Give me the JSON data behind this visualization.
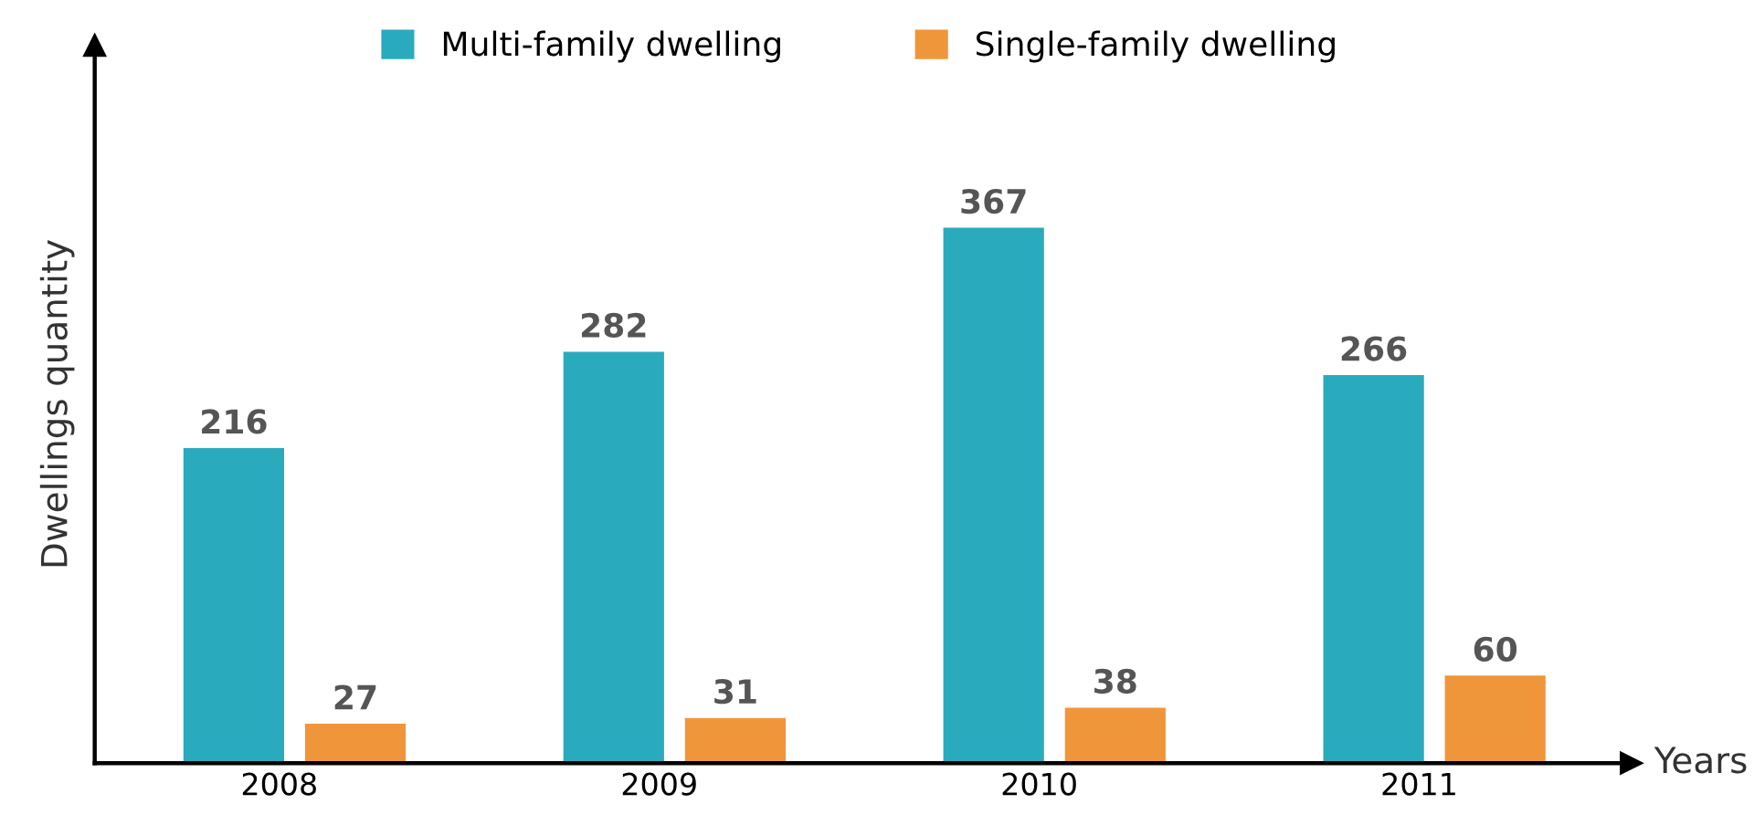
{
  "chart_data": {
    "type": "bar",
    "xlabel": "Years",
    "ylabel": "Dwellings quantity",
    "categories": [
      "2008",
      "2009",
      "2010",
      "2011"
    ],
    "series": [
      {
        "name": "Multi-family dwelling",
        "color": "#29abbd",
        "values": [
          216,
          282,
          367,
          266
        ]
      },
      {
        "name": "Single-family dwelling",
        "color": "#f0963a",
        "values": [
          27,
          31,
          38,
          60
        ]
      }
    ],
    "ylim": [
      0,
      492
    ],
    "data_labels": true,
    "legend": "top",
    "tick_labels": "x"
  }
}
